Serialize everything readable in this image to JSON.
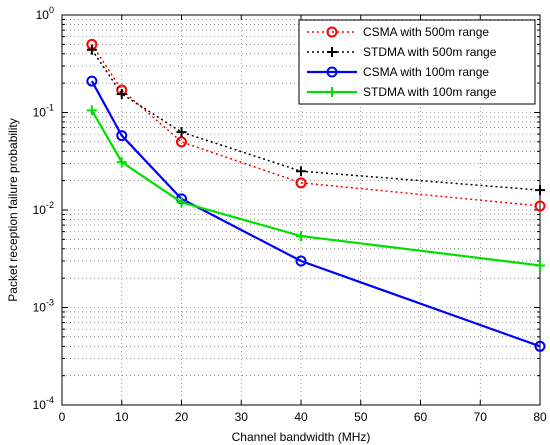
{
  "chart_data": {
    "type": "line",
    "xlabel": "Channel bandwidth (MHz)",
    "ylabel": "Packet reception failure probability",
    "xlim": [
      0,
      80
    ],
    "ylim": [
      0.0001,
      1
    ],
    "yscale": "log",
    "grid": true,
    "legend_position": "top-right",
    "x_ticks": [
      0,
      10,
      20,
      30,
      40,
      50,
      60,
      70,
      80
    ],
    "x_tick_labels": [
      "0",
      "10",
      "20",
      "30",
      "40",
      "50",
      "60",
      "70",
      "80"
    ],
    "y_ticks": [
      0.0001,
      0.001,
      0.01,
      0.1,
      1
    ],
    "y_tick_labels": [
      {
        "base": "10",
        "exp": "-4"
      },
      {
        "base": "10",
        "exp": "-3"
      },
      {
        "base": "10",
        "exp": "-2"
      },
      {
        "base": "10",
        "exp": "-1"
      },
      {
        "base": "10",
        "exp": "0"
      }
    ],
    "series": [
      {
        "name": "CSMA with 500m range",
        "color": "#ff0000",
        "line_style": "dotted",
        "marker": "circle",
        "x": [
          5,
          10,
          20,
          40,
          80
        ],
        "y": [
          0.5,
          0.17,
          0.05,
          0.019,
          0.011
        ]
      },
      {
        "name": "STDMA with 500m range",
        "color": "#000000",
        "line_style": "dotted",
        "marker": "plus",
        "x": [
          5,
          10,
          20,
          40,
          80
        ],
        "y": [
          0.44,
          0.155,
          0.063,
          0.025,
          0.016
        ]
      },
      {
        "name": "CSMA with 100m range",
        "color": "#0000ff",
        "line_style": "solid",
        "marker": "circle",
        "x": [
          5,
          10,
          20,
          40,
          80
        ],
        "y": [
          0.21,
          0.058,
          0.013,
          0.003,
          0.0004
        ]
      },
      {
        "name": "STDMA with 100m range",
        "color": "#00e000",
        "line_style": "solid",
        "marker": "plus",
        "x": [
          5,
          10,
          20,
          40,
          80
        ],
        "y": [
          0.105,
          0.031,
          0.012,
          0.0054,
          0.0027
        ]
      }
    ]
  }
}
